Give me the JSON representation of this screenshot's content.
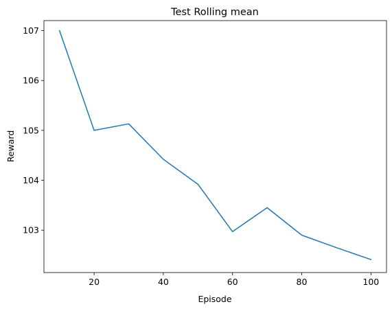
{
  "chart_data": {
    "type": "line",
    "title": "Test Rolling mean",
    "xlabel": "Episode",
    "ylabel": "Reward",
    "xlim": [
      5.5,
      104.5
    ],
    "ylim": [
      102.15,
      107.2
    ],
    "xticks": [
      20,
      40,
      60,
      80,
      100
    ],
    "yticks": [
      103,
      104,
      105,
      106,
      107
    ],
    "grid": false,
    "series": [
      {
        "name": "Rolling mean",
        "color": "#1f77b4",
        "x": [
          10,
          20,
          30,
          40,
          50,
          60,
          70,
          80,
          90,
          100
        ],
        "y": [
          107.0,
          105.0,
          105.13,
          104.42,
          103.92,
          102.97,
          103.45,
          102.9,
          102.65,
          102.41
        ]
      }
    ]
  }
}
